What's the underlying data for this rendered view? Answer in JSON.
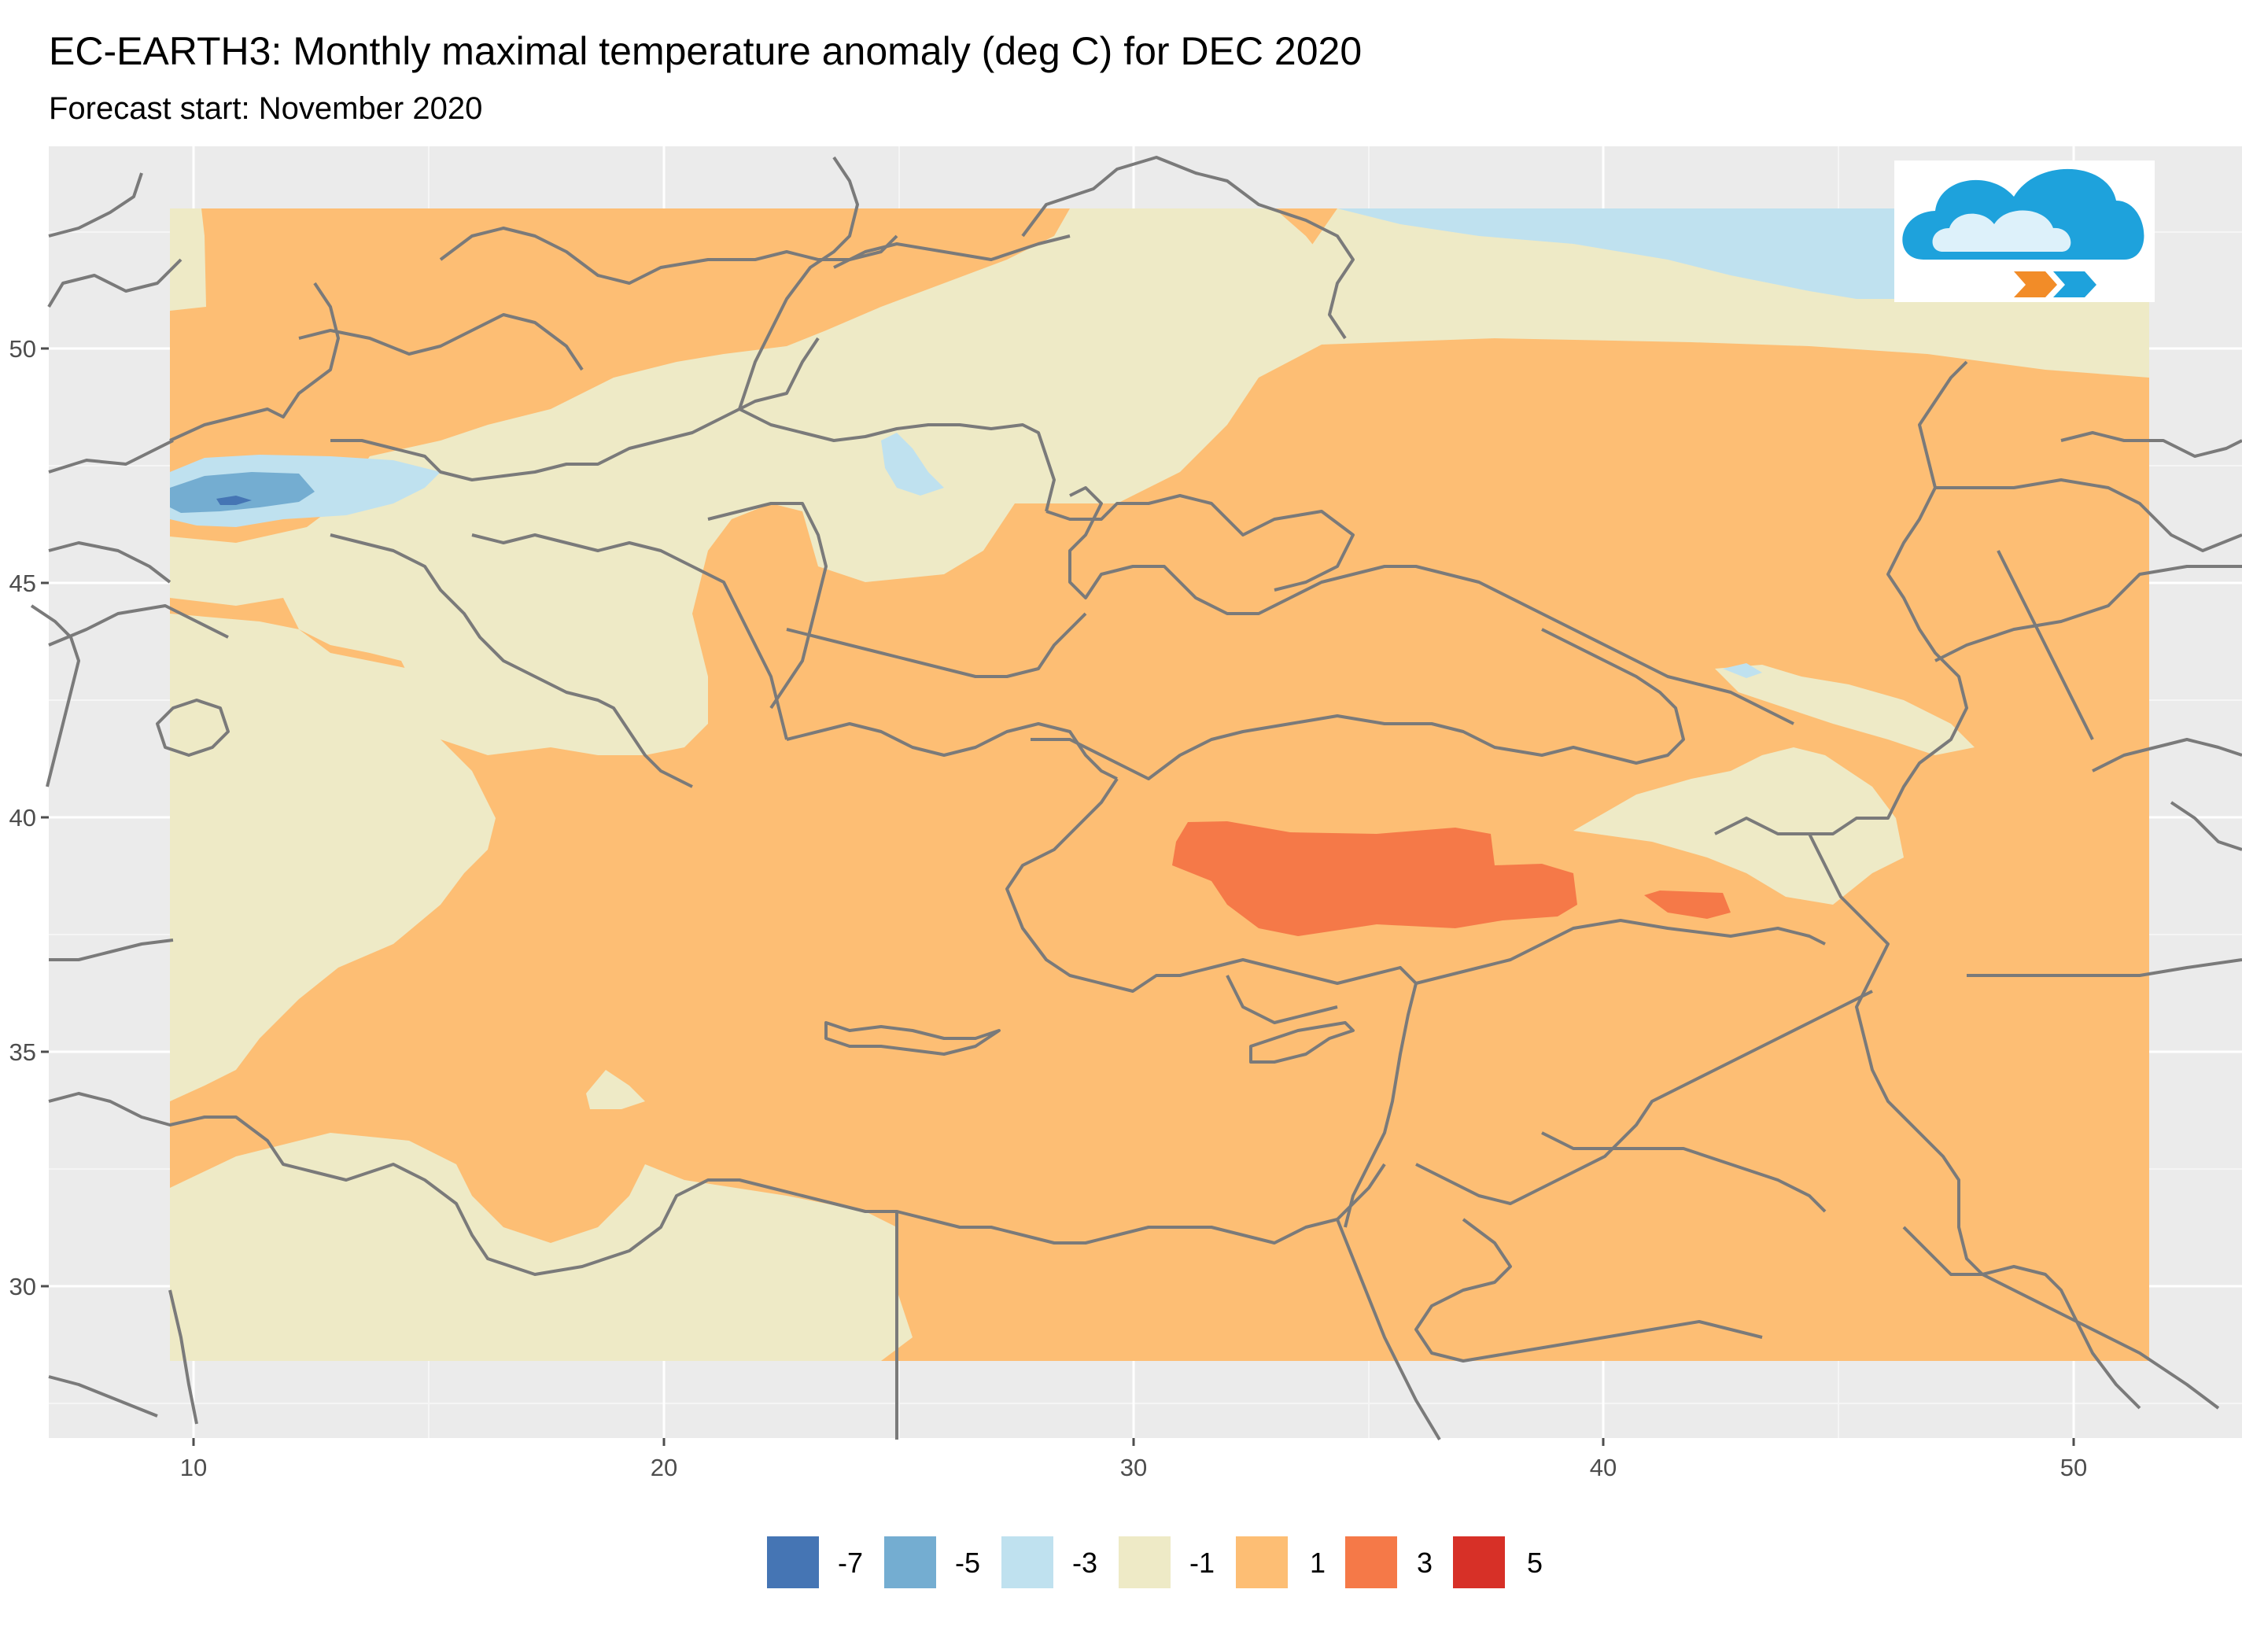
{
  "title": "EC-EARTH3: Monthly maximal temperature anomaly (deg C) for DEC 2020",
  "subtitle": "Forecast start: November 2020",
  "logo_icon": "cloud-logo-icon",
  "axes": {
    "x_ticks": [
      "10",
      "20",
      "30",
      "40",
      "50"
    ],
    "y_ticks": [
      "50",
      "45",
      "40",
      "35",
      "30"
    ]
  },
  "legend": {
    "items": [
      {
        "label": "-7",
        "color": "#4575b4"
      },
      {
        "label": "-5",
        "color": "#74add1"
      },
      {
        "label": "-3",
        "color": "#bfe1ef"
      },
      {
        "label": "-1",
        "color": "#eeeac6"
      },
      {
        "label": "1",
        "color": "#fdbe74"
      },
      {
        "label": "3",
        "color": "#f57948"
      },
      {
        "label": "5",
        "color": "#d73027"
      }
    ]
  },
  "colors": {
    "panel_background": "#ebebeb",
    "grid": "#ffffff",
    "borders": "#7a7a7a"
  }
}
